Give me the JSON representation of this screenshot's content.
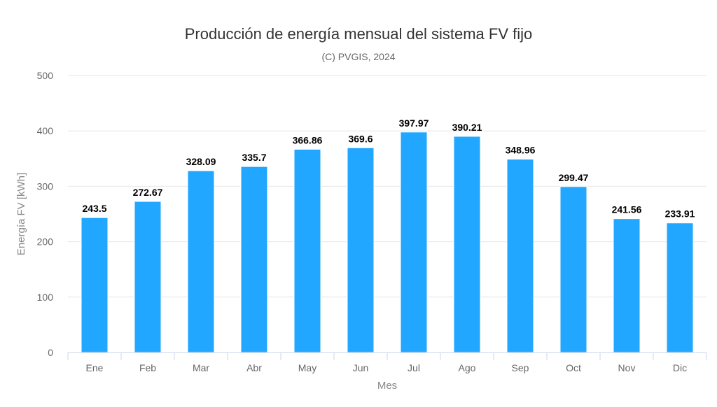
{
  "chart_data": {
    "type": "bar",
    "title": "Producción de energía mensual del sistema FV fijo",
    "subtitle": "(C) PVGIS, 2024",
    "xlabel": "Mes",
    "ylabel": "Energía FV [kWh]",
    "categories": [
      "Ene",
      "Feb",
      "Mar",
      "Abr",
      "May",
      "Jun",
      "Jul",
      "Ago",
      "Sep",
      "Oct",
      "Nov",
      "Dic"
    ],
    "values": [
      243.5,
      272.67,
      328.09,
      335.7,
      366.86,
      369.6,
      397.97,
      390.21,
      348.96,
      299.47,
      241.56,
      233.91
    ],
    "ylim": [
      0,
      500
    ],
    "yticks": [
      0,
      100,
      200,
      300,
      400,
      500
    ],
    "grid": true,
    "legend": "none",
    "bar_color": "#21a7ff"
  }
}
